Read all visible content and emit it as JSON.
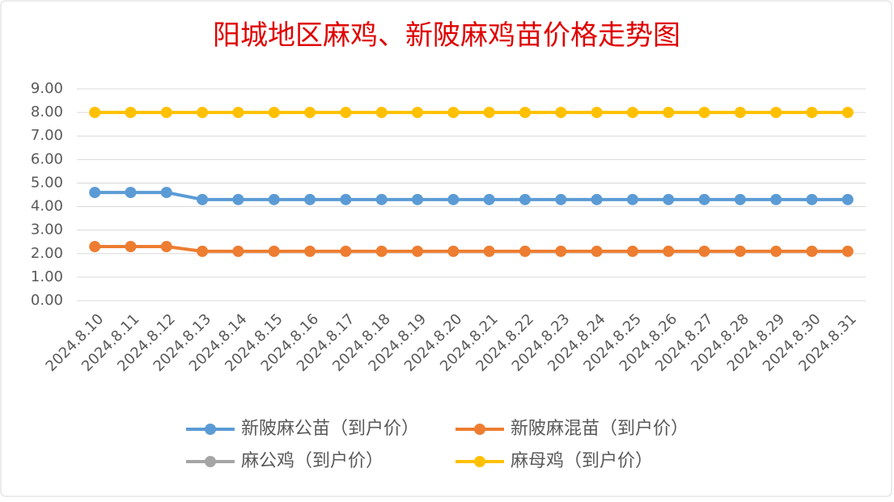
{
  "chart_data": {
    "type": "line",
    "title": "阳城地区麻鸡、新陂麻鸡苗价格走势图",
    "categories": [
      "2024.8.10",
      "2024.8.11",
      "2024.8.12",
      "2024.8.13",
      "2024.8.14",
      "2024.8.15",
      "2024.8.16",
      "2024.8.17",
      "2024.8.18",
      "2024.8.19",
      "2024.8.20",
      "2024.8.21",
      "2024.8.22",
      "2024.8.23",
      "2024.8.24",
      "2024.8.25",
      "2024.8.26",
      "2024.8.27",
      "2024.8.28",
      "2024.8.29",
      "2024.8.30",
      "2024.8.31"
    ],
    "series": [
      {
        "name": "新陂麻公苗（到户价）",
        "color": "#5b9bd5",
        "values": [
          4.6,
          4.6,
          4.6,
          4.3,
          4.3,
          4.3,
          4.3,
          4.3,
          4.3,
          4.3,
          4.3,
          4.3,
          4.3,
          4.3,
          4.3,
          4.3,
          4.3,
          4.3,
          4.3,
          4.3,
          4.3,
          4.3
        ]
      },
      {
        "name": "新陂麻混苗（到户价）",
        "color": "#ed7d31",
        "values": [
          2.3,
          2.3,
          2.3,
          2.1,
          2.1,
          2.1,
          2.1,
          2.1,
          2.1,
          2.1,
          2.1,
          2.1,
          2.1,
          2.1,
          2.1,
          2.1,
          2.1,
          2.1,
          2.1,
          2.1,
          2.1,
          2.1
        ]
      },
      {
        "name": "麻公鸡（到户价）",
        "color": "#a5a5a5",
        "values": [
          null,
          null,
          null,
          null,
          null,
          null,
          null,
          null,
          null,
          null,
          null,
          null,
          null,
          null,
          null,
          null,
          null,
          null,
          null,
          null,
          null,
          null
        ]
      },
      {
        "name": "麻母鸡（到户价）",
        "color": "#ffc000",
        "values": [
          8,
          8,
          8,
          8,
          8,
          8,
          8,
          8,
          8,
          8,
          8,
          8,
          8,
          8,
          8,
          8,
          8,
          8,
          8,
          8,
          8,
          8
        ]
      }
    ],
    "ylim": [
      0,
      9
    ],
    "yticks": [
      {
        "value": 0,
        "label": "0.00"
      },
      {
        "value": 1,
        "label": "1.00"
      },
      {
        "value": 2,
        "label": "2.00"
      },
      {
        "value": 3,
        "label": "3.00"
      },
      {
        "value": 4,
        "label": "4.00"
      },
      {
        "value": 5,
        "label": "5.00"
      },
      {
        "value": 6,
        "label": "6.00"
      },
      {
        "value": 7,
        "label": "7.00"
      },
      {
        "value": 8,
        "label": "8.00"
      },
      {
        "value": 9,
        "label": "9.00"
      }
    ],
    "grid": true
  }
}
